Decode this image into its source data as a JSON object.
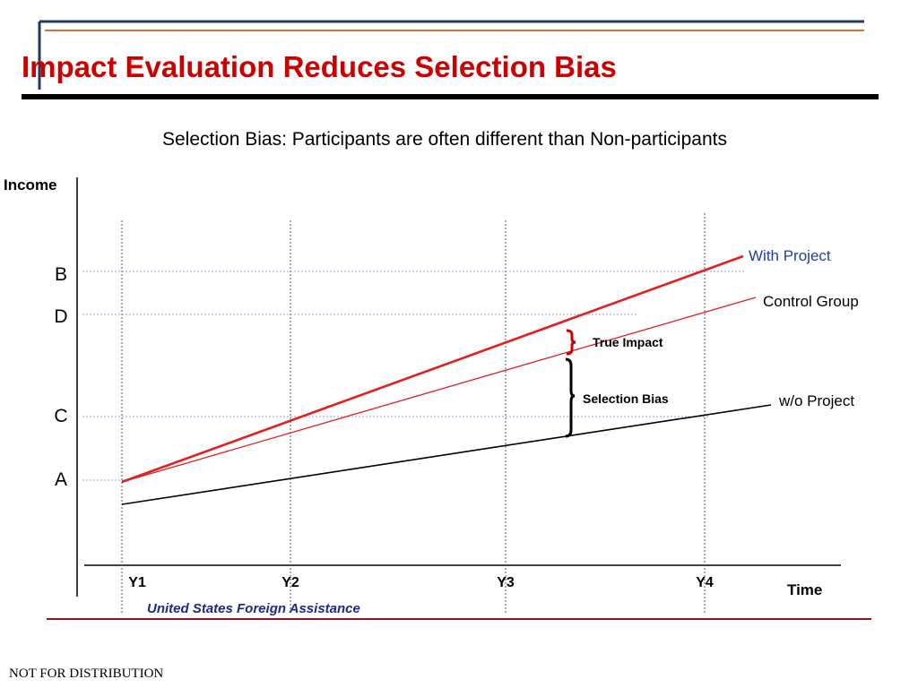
{
  "slide": {
    "title": "Impact Evaluation Reduces Selection Bias",
    "subtitle": "Selection Bias: Participants are often different than Non-participants",
    "footer_org": "United States Foreign Assistance",
    "notice": "NOT FOR DISTRIBUTION",
    "colors": {
      "title": "#cc0000",
      "accent_rule": "#cc0000",
      "frame": "#1f3864",
      "footer_org": "#1a2a8a"
    }
  },
  "chart_data": {
    "type": "line",
    "ylabel": "Income",
    "xlabel": "Time",
    "x_ticks": [
      "Y1",
      "Y2",
      "Y3",
      "Y4"
    ],
    "y_levels": [
      "B",
      "D",
      "C",
      "A"
    ],
    "grid": "dotted reference lines at Y1–Y4 and at levels A–D",
    "series": [
      {
        "name": "With Project",
        "color": "#e02020",
        "label_color": "#1f3fa0",
        "from": "A at Y1",
        "to": "B at Y4"
      },
      {
        "name": "Control Group",
        "color": "#e02020",
        "label_color": "#000000",
        "from": "A at Y1",
        "to": "D at Y4"
      },
      {
        "name": "w/o Project",
        "color": "#000000",
        "label_color": "#000000",
        "from": "below A at Y1",
        "to": "C at Y4"
      }
    ],
    "annotations": [
      {
        "label": "True Impact",
        "brace_color": "#cc0000",
        "between": [
          "With Project",
          "Control Group"
        ]
      },
      {
        "label": "Selection Bias",
        "brace_color": "#000000",
        "between": [
          "Control Group",
          "w/o Project"
        ]
      }
    ]
  }
}
